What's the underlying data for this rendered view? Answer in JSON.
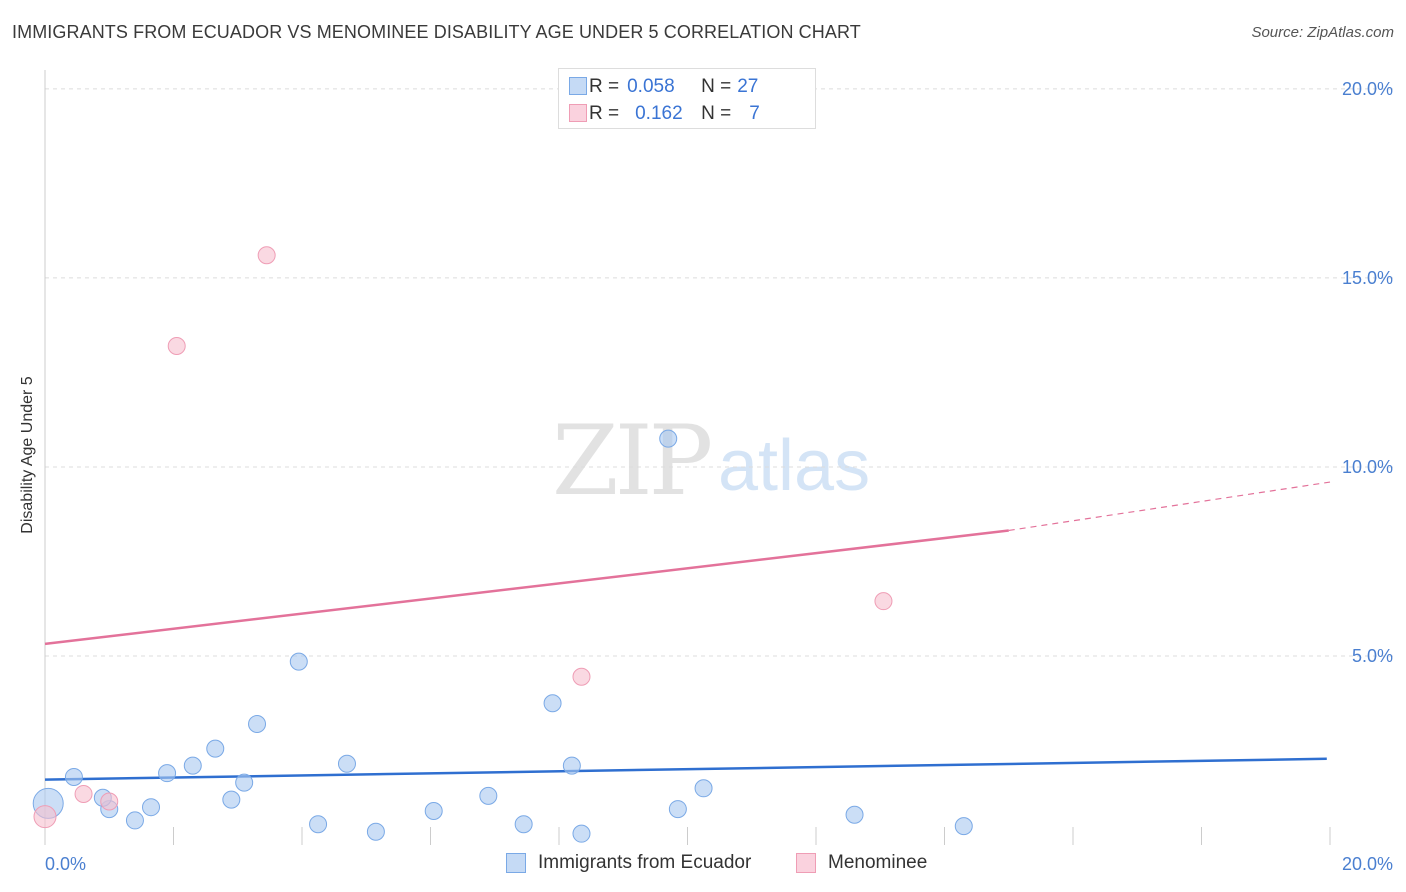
{
  "title": "IMMIGRANTS FROM ECUADOR VS MENOMINEE DISABILITY AGE UNDER 5 CORRELATION CHART",
  "source": "Source: ZipAtlas.com",
  "watermark": {
    "zip": "ZIP",
    "atlas": "atlas"
  },
  "colors": {
    "blue_fill": "#a9c8f0",
    "blue_stroke": "#7aa9e6",
    "blue_line": "#2f6fd0",
    "pink_fill": "#f7c0cf",
    "pink_stroke": "#ef9db5",
    "pink_line": "#e3729a",
    "grid": "#dcdcdc",
    "tick_text": "#4a7fd0"
  },
  "legend_top": {
    "rows": [
      {
        "r_label": "R =",
        "r_value": "0.058",
        "n_label": "N =",
        "n_value": "27"
      },
      {
        "r_label": "R =",
        "r_value": "0.162",
        "n_label": "N =",
        "n_value": "7"
      }
    ]
  },
  "chart_data": {
    "type": "scatter",
    "title": "IMMIGRANTS FROM ECUADOR VS MENOMINEE DISABILITY AGE UNDER 5 CORRELATION CHART",
    "xlabel": "",
    "ylabel": "Disability Age Under 5",
    "xlim": [
      0,
      20
    ],
    "ylim": [
      0,
      20.5
    ],
    "x_tick_labels": [
      "0.0%",
      "20.0%"
    ],
    "y_ticks": [
      5,
      10,
      15,
      20
    ],
    "y_tick_labels": [
      "5.0%",
      "10.0%",
      "15.0%",
      "20.0%"
    ],
    "series": [
      {
        "name": "Immigrants from Ecuador",
        "color": "blue",
        "points": [
          [
            0.05,
            1.1
          ],
          [
            0.45,
            1.8
          ],
          [
            1.0,
            0.95
          ],
          [
            0.9,
            1.25
          ],
          [
            1.4,
            0.65
          ],
          [
            1.65,
            1.0
          ],
          [
            1.9,
            1.9
          ],
          [
            2.3,
            2.1
          ],
          [
            2.65,
            2.55
          ],
          [
            2.9,
            1.2
          ],
          [
            3.1,
            1.65
          ],
          [
            3.3,
            3.2
          ],
          [
            3.95,
            4.85
          ],
          [
            4.25,
            0.55
          ],
          [
            4.7,
            2.15
          ],
          [
            5.15,
            0.35
          ],
          [
            6.05,
            0.9
          ],
          [
            6.9,
            1.3
          ],
          [
            7.45,
            0.55
          ],
          [
            7.9,
            3.75
          ],
          [
            8.2,
            2.1
          ],
          [
            8.35,
            0.3
          ],
          [
            9.7,
            10.75
          ],
          [
            9.85,
            0.95
          ],
          [
            10.25,
            1.5
          ],
          [
            12.6,
            0.8
          ],
          [
            14.3,
            0.5
          ]
        ],
        "trend": {
          "x0": 0,
          "y0": 1.73,
          "x1": 19.95,
          "y1": 2.28
        }
      },
      {
        "name": "Menominee",
        "color": "pink",
        "points": [
          [
            0.0,
            0.75
          ],
          [
            0.6,
            1.35
          ],
          [
            1.0,
            1.15
          ],
          [
            2.05,
            13.2
          ],
          [
            3.45,
            15.6
          ],
          [
            8.35,
            4.45
          ],
          [
            13.05,
            6.45
          ]
        ],
        "trend": {
          "x0": 0,
          "y0": 5.32,
          "x1": 15.0,
          "y1": 8.32,
          "dash_to_x": 20.0,
          "dash_to_y": 9.6
        }
      }
    ],
    "legend": [
      "Immigrants from Ecuador",
      "Menominee"
    ]
  }
}
